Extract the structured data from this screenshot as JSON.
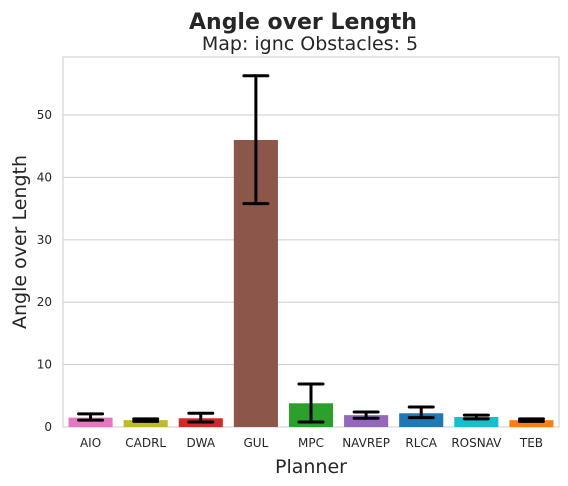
{
  "chart_data": {
    "type": "bar",
    "title": "Angle over Length",
    "subtitle": "Map: ignc Obstacles: 5",
    "xlabel": "Planner",
    "ylabel": "Angle over Length",
    "ylim": [
      0,
      59.3
    ],
    "yticks": [
      0,
      10,
      20,
      30,
      40,
      50
    ],
    "grid": true,
    "categories": [
      "AIO",
      "CADRL",
      "DWA",
      "GUL",
      "MPC",
      "NAVREP",
      "RLCA",
      "ROSNAV",
      "TEB"
    ],
    "values": [
      1.5,
      1.1,
      1.4,
      46.0,
      3.8,
      1.9,
      2.2,
      1.6,
      1.1
    ],
    "error_low": [
      1.1,
      0.9,
      0.8,
      35.8,
      0.8,
      1.4,
      1.5,
      1.3,
      0.9
    ],
    "error_high": [
      2.1,
      1.3,
      2.2,
      56.3,
      6.9,
      2.4,
      3.2,
      1.9,
      1.3
    ],
    "colors": [
      "#e377c2",
      "#bcbd22",
      "#d62728",
      "#8c564b",
      "#2ca02c",
      "#9467bd",
      "#1f77b4",
      "#17becf",
      "#ff7f0e"
    ]
  }
}
